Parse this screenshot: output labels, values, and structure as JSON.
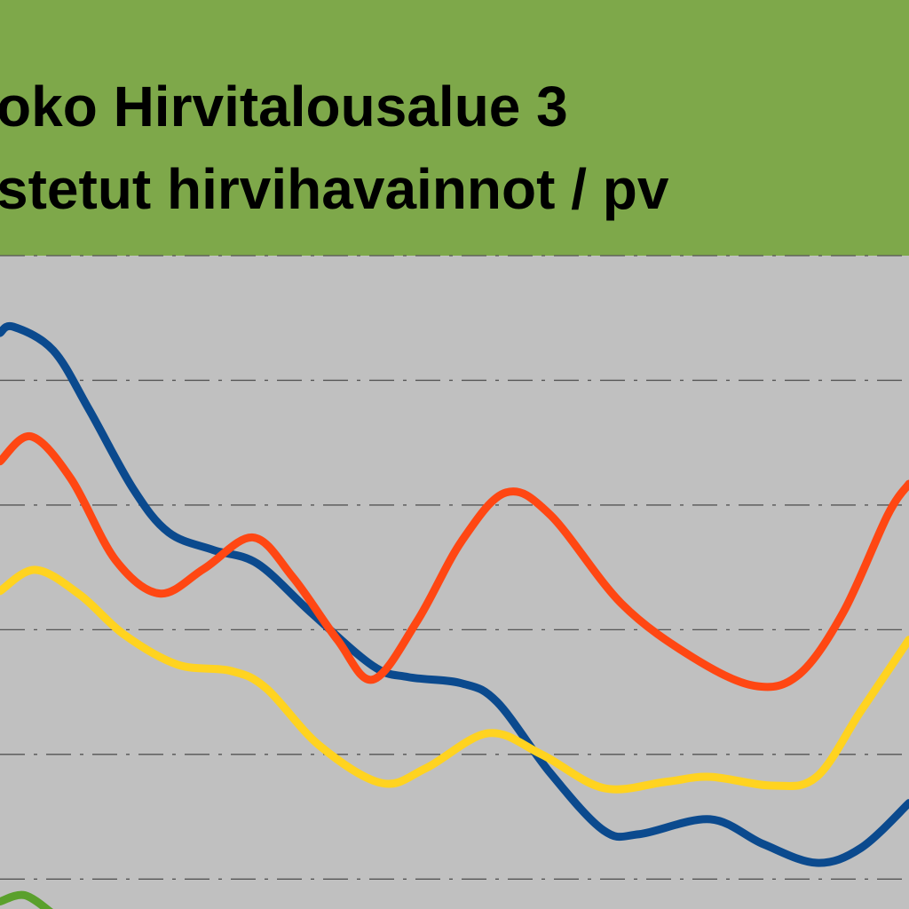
{
  "chart_data": {
    "type": "line",
    "title": [
      "oko Hirvitalousalue 3",
      "stetut hirvihavainnot / pv"
    ],
    "xlim": [
      0,
      1024
    ],
    "ylim": [
      0.76,
      6
    ],
    "grid": true,
    "grid_values": [
      1,
      2,
      3,
      4,
      5,
      6
    ],
    "smooth": true,
    "series": [
      {
        "color": "#0b4a8e",
        "x": [
          0,
          15,
          60,
          100,
          150,
          190,
          240,
          290,
          350,
          420,
          460,
          520,
          560,
          620,
          680,
          720,
          800,
          860,
          920,
          970,
          1024
        ],
        "values": [
          5.38,
          5.43,
          5.24,
          4.77,
          4.13,
          3.78,
          3.64,
          3.53,
          3.14,
          2.71,
          2.62,
          2.57,
          2.42,
          1.85,
          1.39,
          1.36,
          1.48,
          1.28,
          1.13,
          1.25,
          1.61
        ]
      },
      {
        "color": "#ff4713",
        "x": [
          0,
          35,
          80,
          130,
          180,
          230,
          285,
          330,
          380,
          420,
          470,
          520,
          570,
          620,
          700,
          780,
          850,
          900,
          950,
          1000,
          1024
        ],
        "values": [
          4.35,
          4.55,
          4.21,
          3.56,
          3.29,
          3.49,
          3.74,
          3.42,
          2.92,
          2.6,
          3.07,
          3.71,
          4.1,
          3.92,
          3.21,
          2.78,
          2.55,
          2.64,
          3.14,
          3.92,
          4.17
        ]
      },
      {
        "color": "#ffd320",
        "x": [
          0,
          40,
          90,
          140,
          200,
          260,
          300,
          360,
          430,
          480,
          550,
          610,
          680,
          750,
          800,
          870,
          920,
          970,
          1024
        ],
        "values": [
          3.31,
          3.48,
          3.28,
          2.96,
          2.72,
          2.67,
          2.53,
          2.07,
          1.77,
          1.89,
          2.17,
          2.0,
          1.73,
          1.78,
          1.82,
          1.75,
          1.82,
          2.35,
          2.92
        ]
      },
      {
        "color": "#5aa02c",
        "x": [
          0,
          28,
          60
        ],
        "values": [
          0.82,
          0.87,
          0.72
        ]
      }
    ]
  }
}
